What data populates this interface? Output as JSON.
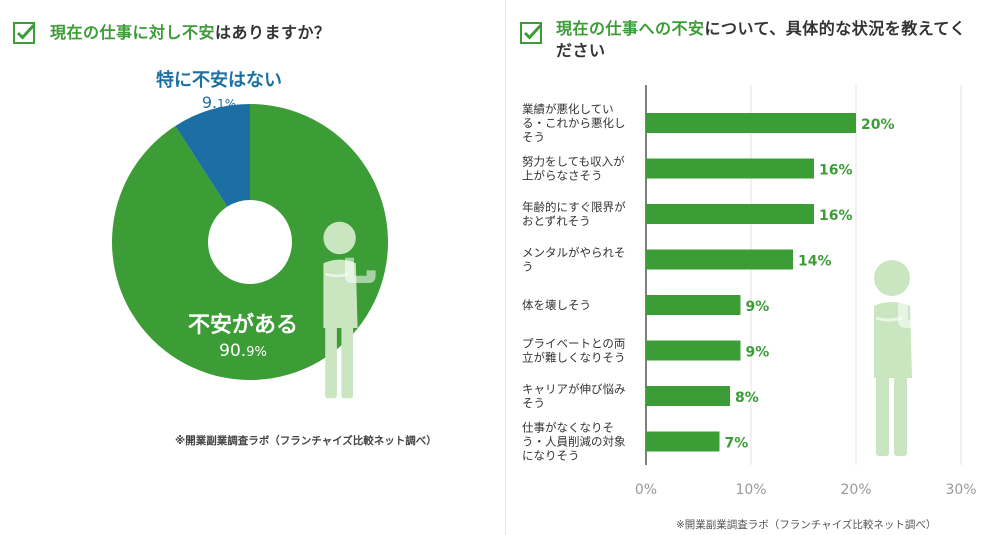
{
  "colors": {
    "green": "#3c9c36",
    "blue": "#1c6fa3",
    "figure": "#c9e6c0",
    "grid": "#e3e3e3"
  },
  "left": {
    "title_highlight": "現在の仕事に対し不安",
    "title_rest": "はありますか？",
    "credit": "※開業副業調査ラボ（フランチャイズ比較ネット調べ）",
    "chart_data": {
      "type": "pie",
      "title": "現在の仕事に対し不安はありますか？",
      "slices": [
        {
          "label": "不安がある",
          "value": 90.9,
          "display": "90.9%",
          "value_main": "90.",
          "value_sub": "9%"
        },
        {
          "label": "特に不安はない",
          "value": 9.1,
          "display": "9.1%",
          "value_main": "9.",
          "value_sub": "1%"
        }
      ]
    }
  },
  "right": {
    "title_highlight": "現在の仕事への不安",
    "title_rest_line1": "について、具体的な状況を教えてく",
    "title_rest_line2": "ださい",
    "credit": "※開業副業調査ラボ（フランチャイズ比較ネット調べ）",
    "chart_data": {
      "type": "bar",
      "orientation": "horizontal",
      "title": "現在の仕事への不安について、具体的な状況を教えてください",
      "categories": [
        [
          "業績が悪化してい",
          "る・これから悪化し",
          "そう"
        ],
        [
          "努力をしても収入が",
          "上がらなさそう"
        ],
        [
          "年齢的にすぐ限界が",
          "おとずれそう"
        ],
        [
          "メンタルがやられそ",
          "う"
        ],
        [
          "体を壊しそう"
        ],
        [
          "プライベートとの両",
          "立が難しくなりそう"
        ],
        [
          "キャリアが伸び悩み",
          "そう"
        ],
        [
          "仕事がなくなりそ",
          "う・人員削減の対象",
          "になりそう"
        ]
      ],
      "values": [
        20,
        16,
        16,
        14,
        9,
        9,
        8,
        7
      ],
      "value_labels": [
        "20%",
        "16%",
        "16%",
        "14%",
        "9%",
        "9%",
        "8%",
        "7%"
      ],
      "xlim": [
        0,
        30
      ],
      "xticks": [
        0,
        10,
        20,
        30
      ],
      "xtick_labels": [
        "0%",
        "10%",
        "20%",
        "30%"
      ]
    }
  }
}
